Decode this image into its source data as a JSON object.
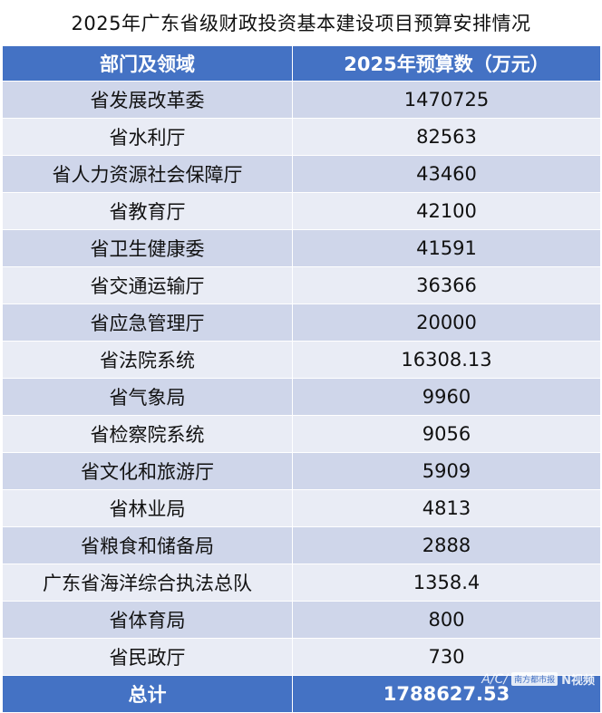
{
  "title": "2025年广东省级财政投资基本建设项目预算安排情况",
  "headers": {
    "department": "部门及领域",
    "amount": "2025年预算数（万元）"
  },
  "rows": [
    {
      "department": "省发展改革委",
      "amount": "1470725"
    },
    {
      "department": "省水利厅",
      "amount": "82563"
    },
    {
      "department": "省人力资源社会保障厅",
      "amount": "43460"
    },
    {
      "department": "省教育厅",
      "amount": "42100"
    },
    {
      "department": "省卫生健康委",
      "amount": "41591"
    },
    {
      "department": "省交通运输厅",
      "amount": "36366"
    },
    {
      "department": "省应急管理厅",
      "amount": "20000"
    },
    {
      "department": "省法院系统",
      "amount": "16308.13"
    },
    {
      "department": "省气象局",
      "amount": "9960"
    },
    {
      "department": "省检察院系统",
      "amount": "9056"
    },
    {
      "department": "省文化和旅游厅",
      "amount": "5909"
    },
    {
      "department": "省林业局",
      "amount": "4813"
    },
    {
      "department": "省粮食和储备局",
      "amount": "2888"
    },
    {
      "department": "广东省海洋综合执法总队",
      "amount": "1358.4"
    },
    {
      "department": "省体育局",
      "amount": "800"
    },
    {
      "department": "省民政厅",
      "amount": "730"
    }
  ],
  "total": {
    "label": "总计",
    "amount": "1788627.53"
  },
  "watermark": {
    "logo_text": "A/C/",
    "box_text": "南方都市报",
    "brand": "N视频"
  }
}
